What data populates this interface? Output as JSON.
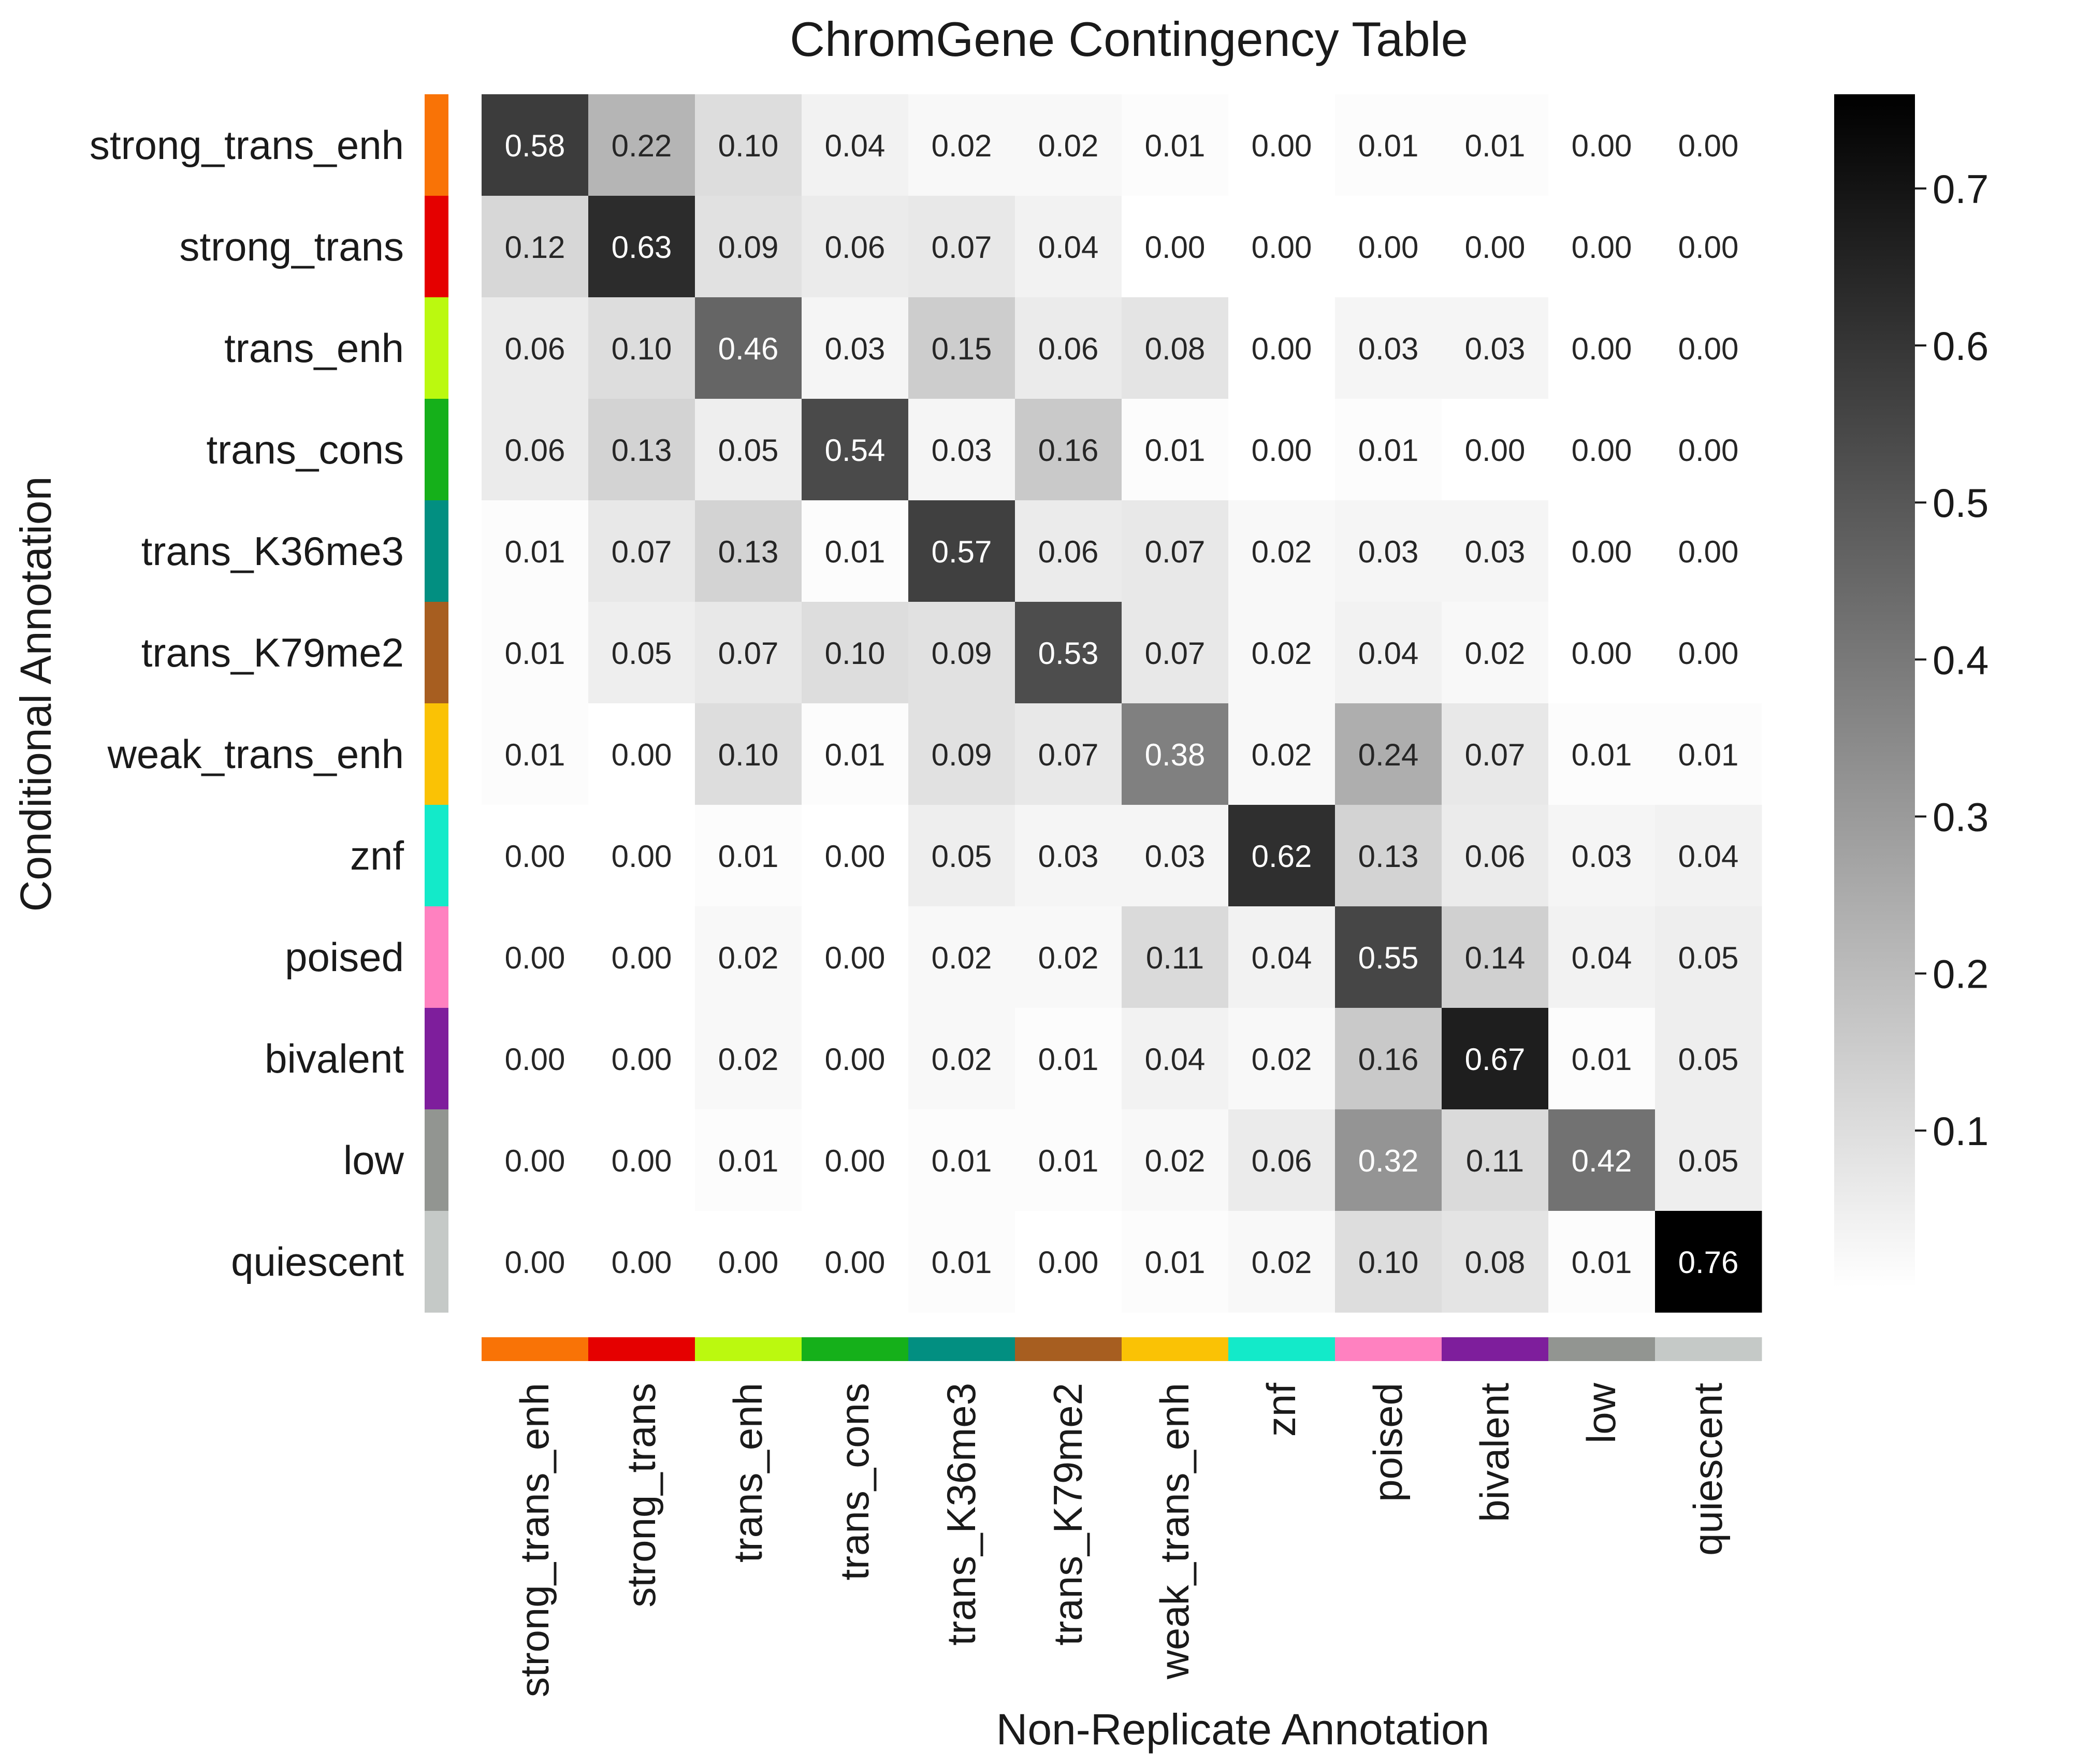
{
  "chart_data": {
    "type": "heatmap",
    "title": "ChromGene Contingency Table",
    "xlabel": "Non-Replicate Annotation",
    "ylabel": "Conditional Annotation",
    "rows": [
      "strong_trans_enh",
      "strong_trans",
      "trans_enh",
      "trans_cons",
      "trans_K36me3",
      "trans_K79me2",
      "weak_trans_enh",
      "znf",
      "poised",
      "bivalent",
      "low",
      "quiescent"
    ],
    "columns": [
      "strong_trans_enh",
      "strong_trans",
      "trans_enh",
      "trans_cons",
      "trans_K36me3",
      "trans_K79me2",
      "weak_trans_enh",
      "znf",
      "poised",
      "bivalent",
      "low",
      "quiescent"
    ],
    "category_colors": [
      "#f97306",
      "#e50000",
      "#bbf90f",
      "#15b01a",
      "#028f81",
      "#a75e20",
      "#fac205",
      "#13eac9",
      "#ff81c0",
      "#7e1e9c",
      "#929591",
      "#c5c9c7"
    ],
    "values": [
      [
        0.58,
        0.22,
        0.1,
        0.04,
        0.02,
        0.02,
        0.01,
        0.0,
        0.01,
        0.01,
        0.0,
        0.0
      ],
      [
        0.12,
        0.63,
        0.09,
        0.06,
        0.07,
        0.04,
        0.0,
        0.0,
        0.0,
        0.0,
        0.0,
        0.0
      ],
      [
        0.06,
        0.1,
        0.46,
        0.03,
        0.15,
        0.06,
        0.08,
        0.0,
        0.03,
        0.03,
        0.0,
        0.0
      ],
      [
        0.06,
        0.13,
        0.05,
        0.54,
        0.03,
        0.16,
        0.01,
        0.0,
        0.01,
        0.0,
        0.0,
        0.0
      ],
      [
        0.01,
        0.07,
        0.13,
        0.01,
        0.57,
        0.06,
        0.07,
        0.02,
        0.03,
        0.03,
        0.0,
        0.0
      ],
      [
        0.01,
        0.05,
        0.07,
        0.1,
        0.09,
        0.53,
        0.07,
        0.02,
        0.04,
        0.02,
        0.0,
        0.0
      ],
      [
        0.01,
        0.0,
        0.1,
        0.01,
        0.09,
        0.07,
        0.38,
        0.02,
        0.24,
        0.07,
        0.01,
        0.01
      ],
      [
        0.0,
        0.0,
        0.01,
        0.0,
        0.05,
        0.03,
        0.03,
        0.62,
        0.13,
        0.06,
        0.03,
        0.04
      ],
      [
        0.0,
        0.0,
        0.02,
        0.0,
        0.02,
        0.02,
        0.11,
        0.04,
        0.55,
        0.14,
        0.04,
        0.05
      ],
      [
        0.0,
        0.0,
        0.02,
        0.0,
        0.02,
        0.01,
        0.04,
        0.02,
        0.16,
        0.67,
        0.01,
        0.05
      ],
      [
        0.0,
        0.0,
        0.01,
        0.0,
        0.01,
        0.01,
        0.02,
        0.06,
        0.32,
        0.11,
        0.42,
        0.05
      ],
      [
        0.0,
        0.0,
        0.0,
        0.0,
        0.01,
        0.0,
        0.01,
        0.02,
        0.1,
        0.08,
        0.01,
        0.76
      ]
    ],
    "colorbar": {
      "colormap": "white-to-black",
      "min": 0.0,
      "max": 0.76,
      "ticks": [
        "0.1",
        "0.2",
        "0.3",
        "0.4",
        "0.5",
        "0.6",
        "0.7"
      ]
    },
    "grid": false
  }
}
